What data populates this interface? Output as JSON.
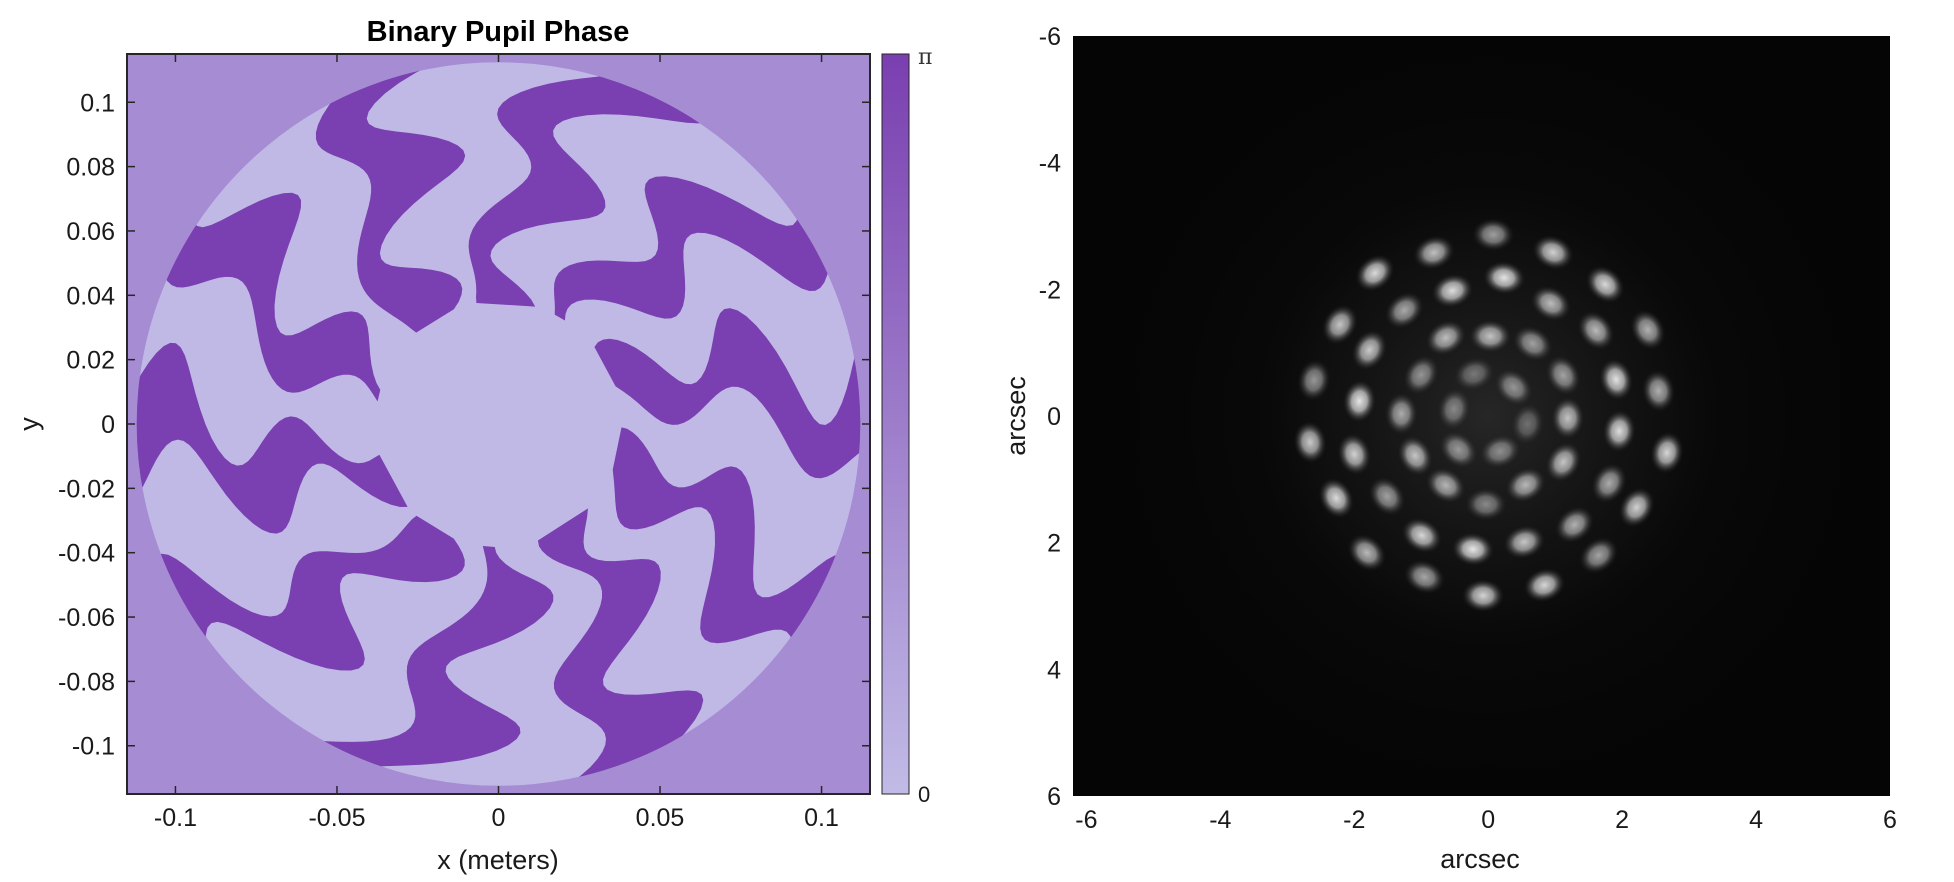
{
  "chart_data": [
    {
      "type": "heatmap",
      "title": "Binary Pupil Phase",
      "xlabel": "x (meters)",
      "ylabel": "y",
      "xlim": [
        -0.115,
        0.115
      ],
      "ylim": [
        -0.115,
        0.115
      ],
      "x_ticks": [
        "-0.1",
        "-0.05",
        "0",
        "0.05",
        "0.1"
      ],
      "x_tick_values": [
        -0.1,
        -0.05,
        0,
        0.05,
        0.1
      ],
      "y_ticks": [
        "0.1",
        "0.08",
        "0.06",
        "0.04",
        "0.02",
        "0",
        "-0.02",
        "-0.04",
        "-0.06",
        "-0.08",
        "-0.1"
      ],
      "y_tick_values": [
        0.1,
        0.08,
        0.06,
        0.04,
        0.02,
        0,
        -0.02,
        -0.04,
        -0.06,
        -0.08,
        -0.1
      ],
      "pupil_radius": 0.112,
      "central_radius": 0.03,
      "arm_count": 10,
      "phase_levels": [
        0,
        "π"
      ],
      "colorbar": {
        "min_label": "0",
        "max_label": "π",
        "min_color": "#c1bbe6",
        "max_color": "#7a3fb0"
      },
      "colors": {
        "outside": "#a68dd3",
        "phase_zero": "#c0b9e6",
        "phase_pi": "#7a3fb0"
      }
    },
    {
      "type": "heatmap",
      "xlabel": "arcsec",
      "ylabel": "arcsec",
      "xlim": [
        -6.2,
        6
      ],
      "ylim": [
        -6,
        6
      ],
      "x_ticks": [
        "-6",
        "-4",
        "-2",
        "0",
        "2",
        "4",
        "6"
      ],
      "x_tick_values": [
        -6,
        -4,
        -2,
        0,
        2,
        4,
        6
      ],
      "y_ticks": [
        "-6",
        "-4",
        "-2",
        "0",
        "2",
        "4",
        "6"
      ],
      "y_tick_values": [
        -6,
        -4,
        -2,
        0,
        2,
        4,
        6
      ],
      "y_direction": "reversed",
      "colormap": "gray",
      "rings": [
        {
          "radius": 0.6,
          "spots": 6,
          "intensity": 0.55
        },
        {
          "radius": 1.25,
          "spots": 12,
          "intensity": 0.75
        },
        {
          "radius": 2.0,
          "spots": 16,
          "intensity": 0.9
        },
        {
          "radius": 2.65,
          "spots": 18,
          "intensity": 0.85
        }
      ]
    }
  ]
}
